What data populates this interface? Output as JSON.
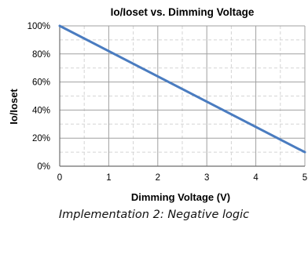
{
  "chart_data": {
    "type": "line",
    "title": "Io/Ioset vs. Dimming Voltage",
    "xlabel": "Dimming Voltage (V)",
    "ylabel": "Io/Ioset",
    "xlim": [
      0,
      5
    ],
    "ylim": [
      0,
      100
    ],
    "x_ticks": [
      "0",
      "1",
      "2",
      "3",
      "4",
      "5"
    ],
    "y_ticks": [
      "0%",
      "20%",
      "40%",
      "60%",
      "80%",
      "100%"
    ],
    "grid": true,
    "line_color": "#4a7cc0",
    "series": [
      {
        "x": [
          0,
          5
        ],
        "y": [
          100,
          10
        ]
      }
    ]
  },
  "caption": "Implementation 2: Negative logic"
}
